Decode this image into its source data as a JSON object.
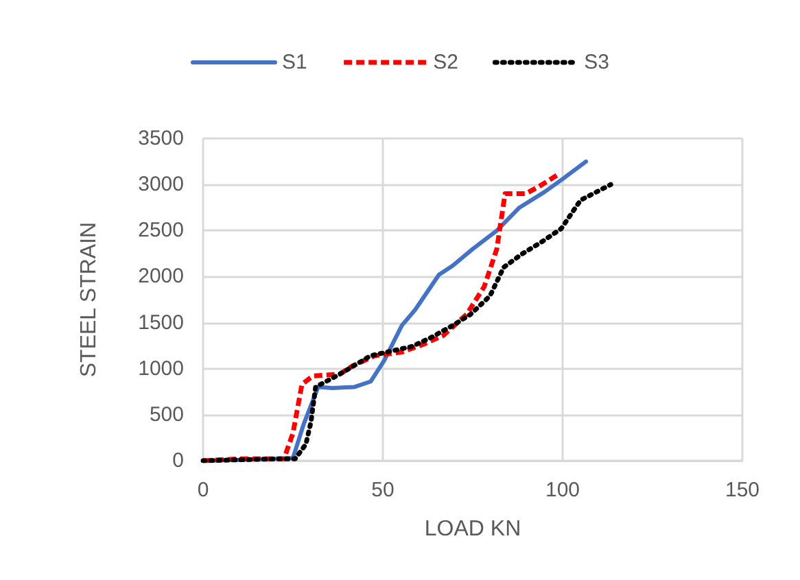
{
  "chart_data": {
    "type": "line",
    "xlabel": "LOAD KN",
    "ylabel": "STEEL STRAIN",
    "xlim": [
      0,
      150
    ],
    "xticks": [
      0,
      50,
      100,
      150
    ],
    "ylim": [
      0,
      3500
    ],
    "yticks": [
      0,
      500,
      1000,
      1500,
      2000,
      2500,
      3000,
      3500
    ],
    "grid": true,
    "legend": "top",
    "marker": "none",
    "series": [
      {
        "name": "S1",
        "color": "#4472c4",
        "line_style": "solid",
        "x": [
          0,
          10,
          20,
          25,
          28,
          32,
          36,
          42,
          46.6,
          50.4,
          55.3,
          59,
          65.6,
          69.5,
          75,
          81.7,
          88,
          95,
          100,
          106.5
        ],
        "values": [
          0,
          10,
          20,
          30,
          400,
          800,
          790,
          800,
          860,
          1090,
          1470,
          1640,
          2020,
          2120,
          2300,
          2500,
          2750,
          2920,
          3060,
          3250
        ]
      },
      {
        "name": "S2",
        "color": "#ff0000",
        "line_style": "dashed",
        "x": [
          0,
          10,
          22.5,
          25,
          27.5,
          30.5,
          38,
          41.6,
          47.7,
          55.3,
          61,
          66.8,
          73.3,
          78.2,
          81.7,
          84,
          89.7,
          93.5,
          99.2
        ],
        "values": [
          0,
          20,
          20,
          300,
          830,
          920,
          940,
          1030,
          1140,
          1180,
          1260,
          1360,
          1590,
          1890,
          2300,
          2900,
          2900,
          2980,
          3120
        ]
      },
      {
        "name": "S3",
        "color": "#000000",
        "line_style": "dotted",
        "x": [
          0,
          10,
          20,
          25.6,
          28.6,
          30,
          31.3,
          38,
          46.6,
          58,
          63,
          69.5,
          74.4,
          79.8,
          83.6,
          88.5,
          94.3,
          99.6,
          105,
          113.4
        ],
        "values": [
          0,
          10,
          20,
          20,
          180,
          420,
          800,
          940,
          1140,
          1240,
          1330,
          1470,
          1590,
          1790,
          2100,
          2240,
          2380,
          2520,
          2830,
          3000
        ]
      }
    ]
  }
}
